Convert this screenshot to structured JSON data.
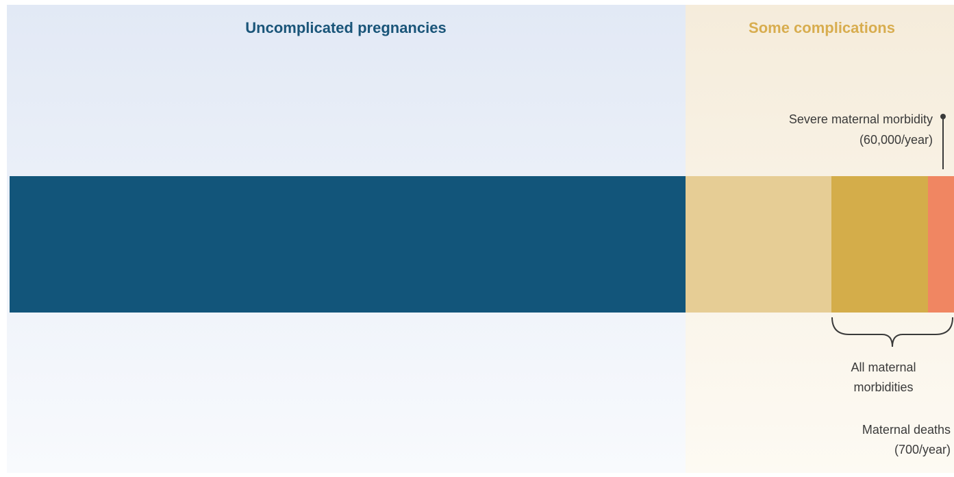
{
  "panels": {
    "left": {
      "title": "Uncomplicated pregnancies"
    },
    "right": {
      "title": "Some complications"
    }
  },
  "annotations": {
    "severe": {
      "line1": "Severe maternal morbidity",
      "line2": "(60,000/year)"
    },
    "all": {
      "line1": "All maternal",
      "line2": "morbidities"
    },
    "deaths": {
      "line1": "Maternal deaths",
      "line2": "(700/year)"
    }
  }
}
